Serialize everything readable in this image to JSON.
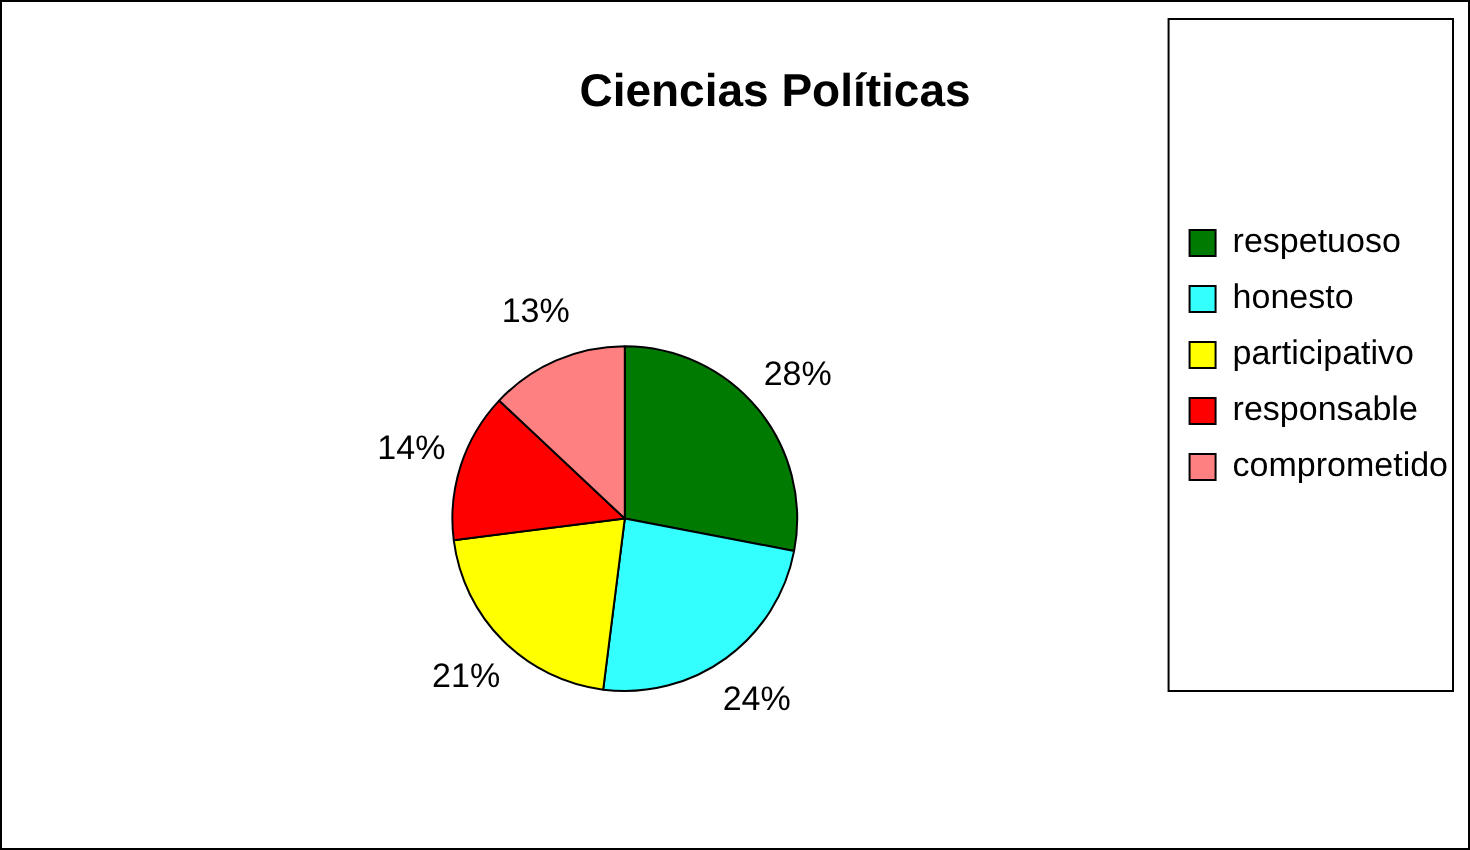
{
  "chart_data": {
    "type": "pie",
    "title": "Ciencias Políticas",
    "categories": [
      "respetuoso",
      "honesto",
      "participativo",
      "responsable",
      "comprometido"
    ],
    "values": [
      28,
      24,
      21,
      14,
      13
    ],
    "colors": [
      "#007a00",
      "#33ffff",
      "#ffff00",
      "#ff0000",
      "#ff8080"
    ],
    "value_labels": [
      "28%",
      "24%",
      "21%",
      "14%",
      "13%"
    ],
    "legend": "right"
  }
}
